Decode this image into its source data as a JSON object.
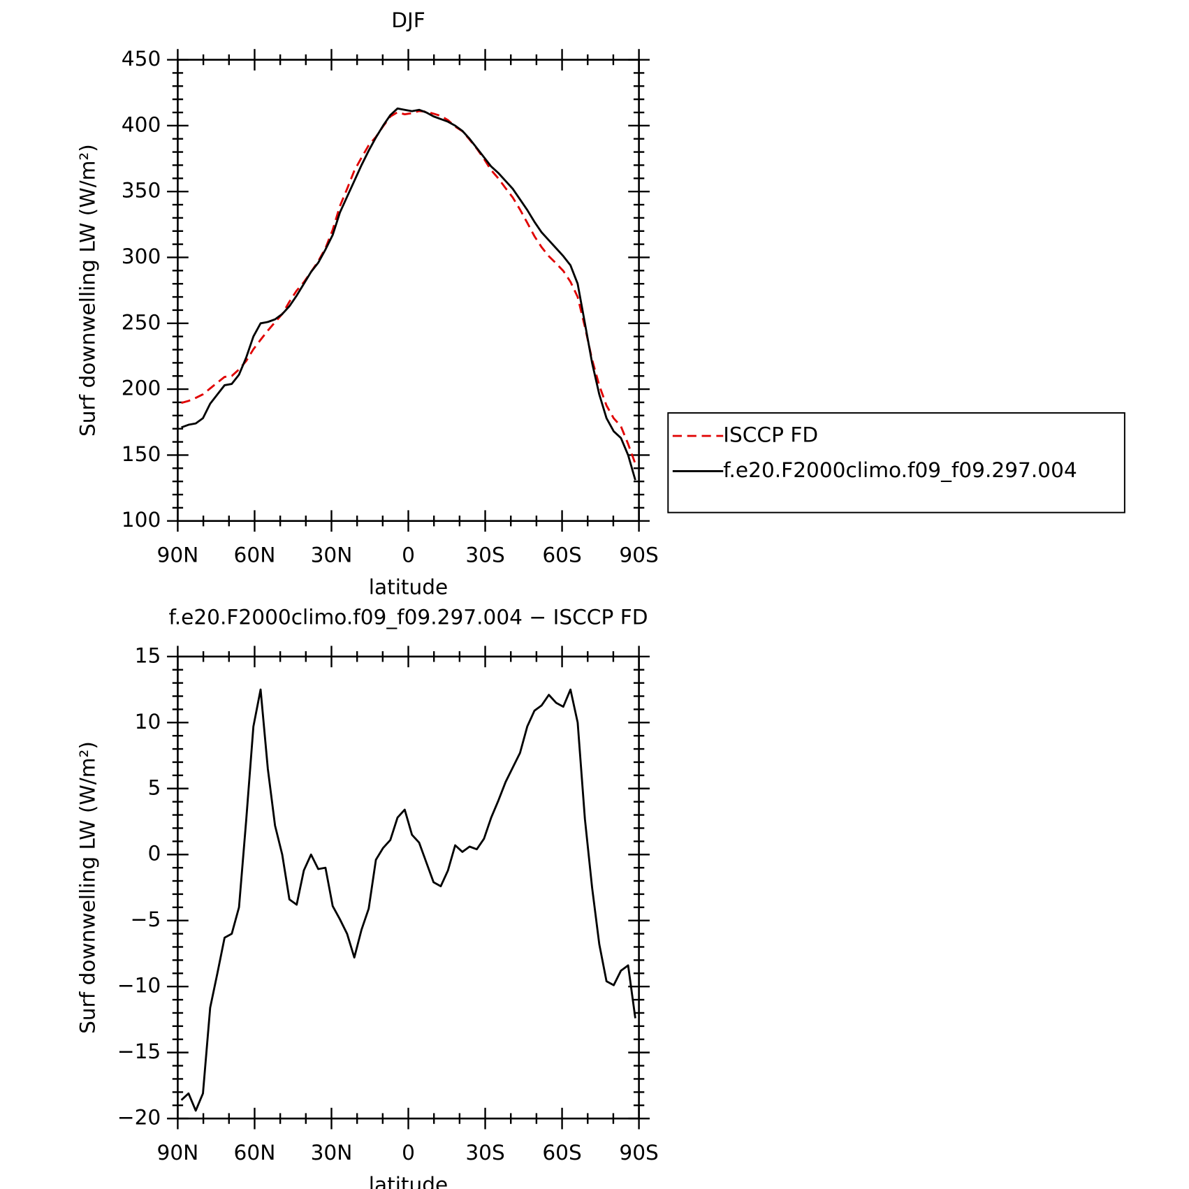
{
  "chart_data": [
    {
      "type": "line",
      "title": "DJF",
      "x_label": "latitude",
      "y_label": "Surf downwelling LW (W/m²)",
      "x": [
        88.59,
        85.78,
        82.97,
        80.16,
        77.34,
        74.53,
        71.72,
        68.91,
        66.09,
        63.28,
        60.47,
        57.66,
        54.84,
        52.03,
        49.22,
        46.41,
        43.59,
        40.78,
        37.97,
        35.16,
        32.34,
        29.53,
        26.72,
        23.91,
        21.09,
        18.28,
        15.47,
        12.66,
        9.84,
        7.03,
        4.22,
        1.41,
        -1.41,
        -4.22,
        -7.03,
        -9.84,
        -12.66,
        -15.47,
        -18.28,
        -21.09,
        -23.91,
        -26.72,
        -29.53,
        -32.34,
        -35.16,
        -37.97,
        -40.78,
        -43.59,
        -46.41,
        -49.22,
        -52.03,
        -54.84,
        -57.66,
        -60.47,
        -63.28,
        -66.09,
        -68.91,
        -71.72,
        -74.53,
        -77.34,
        -80.16,
        -82.97,
        -85.78,
        -88.59
      ],
      "series": [
        {
          "name": "ISCCP FD",
          "color": "#e00000",
          "line_style": "dashed",
          "values": [
            189.6,
            191.1,
            193.4,
            196.1,
            200.6,
            205.0,
            209.3,
            210.0,
            215.0,
            221.4,
            230.3,
            237.5,
            244.5,
            250.8,
            257.0,
            266.4,
            274.8,
            281.2,
            289,
            297.1,
            307.0,
            320.9,
            338.9,
            352.0,
            365.8,
            375.7,
            385.1,
            391.4,
            399.5,
            406.9,
            410.2,
            408.6,
            409.5,
            411.1,
            410.6,
            409.1,
            407.4,
            404.2,
            399.3,
            395.8,
            389.4,
            382.6,
            374.8,
            366.2,
            359.9,
            352.5,
            345.4,
            336.3,
            326.3,
            316.1,
            307.7,
            300.9,
            295.5,
            289.8,
            281.5,
            270.0,
            247.3,
            222.5,
            202.8,
            187.6,
            177.9,
            171.8,
            158.4,
            143.4
          ]
        },
        {
          "name": "f.e20.F2000climo.f09_f09.297.004",
          "color": "#000000",
          "line_style": "solid",
          "values": [
            171,
            173,
            174,
            178,
            189,
            196,
            203,
            204,
            211,
            224,
            240,
            250,
            251,
            253,
            257,
            263,
            271,
            280,
            289,
            296,
            306,
            317,
            334,
            346,
            358,
            370,
            381,
            391,
            400,
            408,
            413,
            412,
            411,
            412,
            410,
            407,
            405,
            403,
            400,
            396,
            390,
            383,
            376,
            369,
            364,
            358,
            352,
            344,
            336,
            327,
            319,
            313,
            307,
            301,
            294,
            280,
            250,
            220,
            196,
            178,
            168,
            163,
            150,
            131
          ]
        }
      ],
      "xlim": [
        90,
        -90
      ],
      "xticks": [
        {
          "value": 90,
          "label": "90N"
        },
        {
          "value": 60,
          "label": "60N"
        },
        {
          "value": 30,
          "label": "30N"
        },
        0,
        {
          "value": -30,
          "label": "30S"
        },
        {
          "value": -60,
          "label": "60S"
        },
        {
          "value": -90,
          "label": "90S"
        }
      ],
      "ylim": [
        100,
        450
      ],
      "yticks": [
        100,
        150,
        200,
        250,
        300,
        350,
        400,
        450
      ],
      "legend": "right"
    },
    {
      "type": "line",
      "title": "f.e20.F2000climo.f09_f09.297.004 − ISCCP FD",
      "x_label": "latitude",
      "y_label": "Surf downwelling LW (W/m²)",
      "x": [
        88.59,
        85.78,
        82.97,
        80.16,
        77.34,
        74.53,
        71.72,
        68.91,
        66.09,
        63.28,
        60.47,
        57.66,
        54.84,
        52.03,
        49.22,
        46.41,
        43.59,
        40.78,
        37.97,
        35.16,
        32.34,
        29.53,
        26.72,
        23.91,
        21.09,
        18.28,
        15.47,
        12.66,
        9.84,
        7.03,
        4.22,
        1.41,
        -1.41,
        -4.22,
        -7.03,
        -9.84,
        -12.66,
        -15.47,
        -18.28,
        -21.09,
        -23.91,
        -26.72,
        -29.53,
        -32.34,
        -35.16,
        -37.97,
        -40.78,
        -43.59,
        -46.41,
        -49.22,
        -52.03,
        -54.84,
        -57.66,
        -60.47,
        -63.28,
        -66.09,
        -68.91,
        -71.72,
        -74.53,
        -77.34,
        -80.16,
        -82.97,
        -85.78,
        -88.59
      ],
      "color": "#000000",
      "values": [
        -18.6,
        -18.1,
        -19.4,
        -18.1,
        -11.6,
        -9.0,
        -6.3,
        -6.0,
        -4.0,
        2.6,
        9.7,
        12.5,
        6.5,
        2.2,
        0,
        -3.4,
        -3.8,
        -1.2,
        0,
        -1.1,
        -1.0,
        -3.9,
        -4.9,
        -6.0,
        -7.8,
        -5.7,
        -4.1,
        -0.4,
        0.5,
        1.1,
        2.8,
        3.4,
        1.5,
        0.9,
        -0.6,
        -2.1,
        -2.4,
        -1.2,
        0.7,
        0.2,
        0.6,
        0.4,
        1.2,
        2.8,
        4.1,
        5.5,
        6.6,
        7.7,
        9.7,
        10.9,
        11.3,
        12.1,
        11.5,
        11.2,
        12.5,
        10.0,
        2.7,
        -2.5,
        -6.8,
        -9.6,
        -9.9,
        -8.8,
        -8.4,
        -12.4
      ],
      "xlim": [
        90,
        -90
      ],
      "xticks": [
        {
          "value": 90,
          "label": "90N"
        },
        {
          "value": 60,
          "label": "60N"
        },
        {
          "value": 30,
          "label": "30N"
        },
        0,
        {
          "value": -30,
          "label": "30S"
        },
        {
          "value": -60,
          "label": "60S"
        },
        {
          "value": -90,
          "label": "90S"
        }
      ],
      "ylim": [
        -20,
        15
      ],
      "yticks": [
        {
          "value": -20,
          "label": "−20"
        },
        {
          "value": -15,
          "label": "−15"
        },
        {
          "value": -10,
          "label": "−10"
        },
        {
          "value": -5,
          "label": "−5"
        },
        0,
        5,
        10,
        15
      ]
    }
  ]
}
